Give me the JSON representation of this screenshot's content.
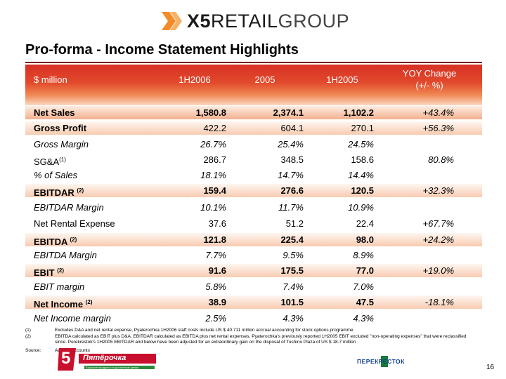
{
  "logo": {
    "x5": "X5",
    "retail": "RETAIL",
    "group": "GROUP"
  },
  "title": "Pro-forma - Income Statement Highlights",
  "header": {
    "label": "$ million",
    "col1": "1H2006",
    "col2": "2005",
    "col3": "1H2005",
    "col4_line1": "YOY Change",
    "col4_line2": "(+/- %)"
  },
  "rows": [
    {
      "label": "Net Sales",
      "c1": "1,580.8",
      "c2": "2,374.1",
      "c3": "1,102.2",
      "c4": "+43.4%"
    },
    {
      "label": "Gross Profit",
      "c1": "422.2",
      "c2": "604.1",
      "c3": "270.1",
      "c4": "+56.3%"
    },
    {
      "label": "Gross Margin",
      "c1": "26.7%",
      "c2": "25.4%",
      "c3": "24.5%",
      "c4": ""
    },
    {
      "label": "SG&A",
      "sup": "(1)",
      "c1": "286.7",
      "c2": "348.5",
      "c3": "158.6",
      "c4": "80.8%"
    },
    {
      "label": "% of Sales",
      "c1": "18.1%",
      "c2": "14.7%",
      "c3": "14.4%",
      "c4": ""
    },
    {
      "label": "EBITDAR",
      "sup": "(2)",
      "c1": "159.4",
      "c2": "276.6",
      "c3": "120.5",
      "c4": "+32.3%"
    },
    {
      "label": "EBITDAR Margin",
      "c1": "10.1%",
      "c2": "11.7%",
      "c3": "10.9%",
      "c4": ""
    },
    {
      "label": "Net Rental Expense",
      "c1": "37.6",
      "c2": "51.2",
      "c3": "22.4",
      "c4": "+67.7%"
    },
    {
      "label": "EBITDA",
      "sup": "(2)",
      "c1": "121.8",
      "c2": "225.4",
      "c3": "98.0",
      "c4": "+24.2%"
    },
    {
      "label": "EBITDA Margin",
      "c1": "7.7%",
      "c2": "9.5%",
      "c3": "8.9%",
      "c4": ""
    },
    {
      "label": "EBIT",
      "sup": "(2)",
      "c1": "91.6",
      "c2": "175.5",
      "c3": "77.0",
      "c4": "+19.0%"
    },
    {
      "label": "EBIT margin",
      "c1": "5.8%",
      "c2": "7.4%",
      "c3": "7.0%",
      "c4": ""
    },
    {
      "label": "Net Income",
      "sup": "(2)",
      "c1": "38.9",
      "c2": "101.5",
      "c3": "47.5",
      "c4": "-18.1%"
    },
    {
      "label": "Net Income margin",
      "c1": "2.5%",
      "c2": "4.3%",
      "c3": "4.3%",
      "c4": ""
    }
  ],
  "footnotes": [
    {
      "key": "(1)",
      "text": "Excludes D&A and net rental expense, Pyaterochka 1H2006 staff costs include US $ 40.711 million accrual accounting for stock options programme"
    },
    {
      "key": "(2)",
      "text": "EBITDA calculated as EBIT plus D&A. EBITDAR calculated as EBITDA plus net rental expenses, Pyaterochka's previously reported 1H2005 EBIT excluded \"non-operating expenses\" that were reclassified since. Perekrestok's 1H2005 EBITDAR and below have been adjusted for an extraordinary gain on the disposal of Tushino Plaza of US $ 18.7 million"
    },
    {
      "key": "Source:",
      "text": "Audited accounts"
    }
  ],
  "bottom": {
    "pyaterochka_numeral": "5",
    "pyaterochka_name": "Пятёрочка",
    "pyaterochka_tagline": "Хорошие продукты по доступным ценам",
    "perekrestok": "ПЕРЕКРЕСТОК",
    "page_number": "16"
  },
  "colors": {
    "header_red": "#d73025",
    "rule": "#7a1010",
    "shade": "#f8cbb1"
  }
}
